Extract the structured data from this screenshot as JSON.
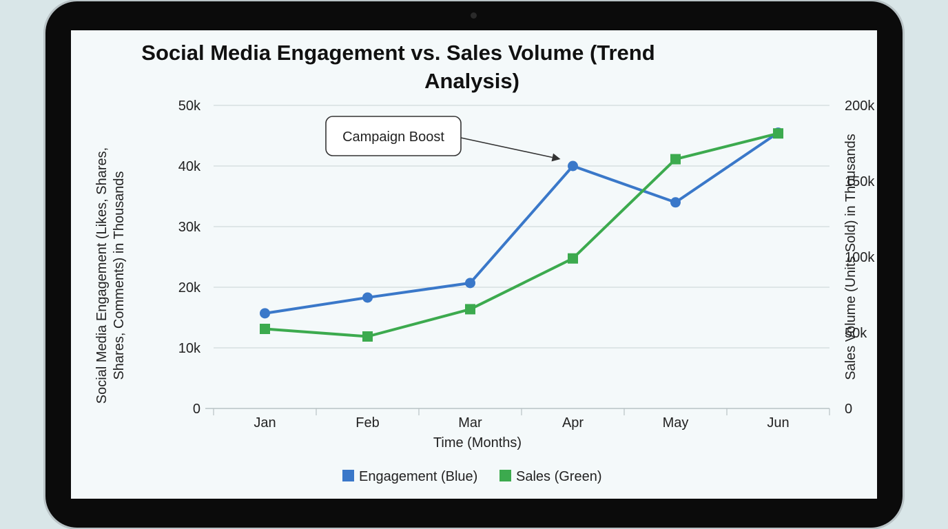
{
  "chart_data": {
    "type": "line",
    "title_lines": [
      "Social Media Engagement vs. Sales Volume (Trend",
      "Analysis)"
    ],
    "categories": [
      "Jan",
      "Feb",
      "Mar",
      "Apr",
      "May",
      "Jun"
    ],
    "xlabel": "Time (Months)",
    "ylabel_left_lines": [
      "Social Media Engagement (Likes, Shares,",
      "Shares, Comments) in Thousands"
    ],
    "ylabel_right": "Sales Volume (Units Sold) in Thousands",
    "ylim_left": [
      0,
      50000
    ],
    "ylim_right": [
      0,
      200000
    ],
    "left_ticks": [
      "0",
      "10k",
      "20k",
      "30k",
      "40k",
      "50k"
    ],
    "right_ticks": [
      "0",
      "50k",
      "100k",
      "150k",
      "200k"
    ],
    "series": [
      {
        "name": "Engagement (Blue)",
        "axis": "left",
        "color": "#3a78c9",
        "marker": "circle",
        "values": [
          15700,
          18300,
          20700,
          40000,
          34000,
          45500
        ]
      },
      {
        "name": "Sales (Green)",
        "axis": "right",
        "color": "#3caa4e",
        "marker": "square",
        "values": [
          52500,
          47500,
          65500,
          99000,
          164500,
          181500
        ]
      }
    ],
    "annotation": {
      "text": "Campaign Boost",
      "category": "Apr",
      "series": 0
    },
    "grid": true,
    "legend_position": "bottom-center"
  }
}
